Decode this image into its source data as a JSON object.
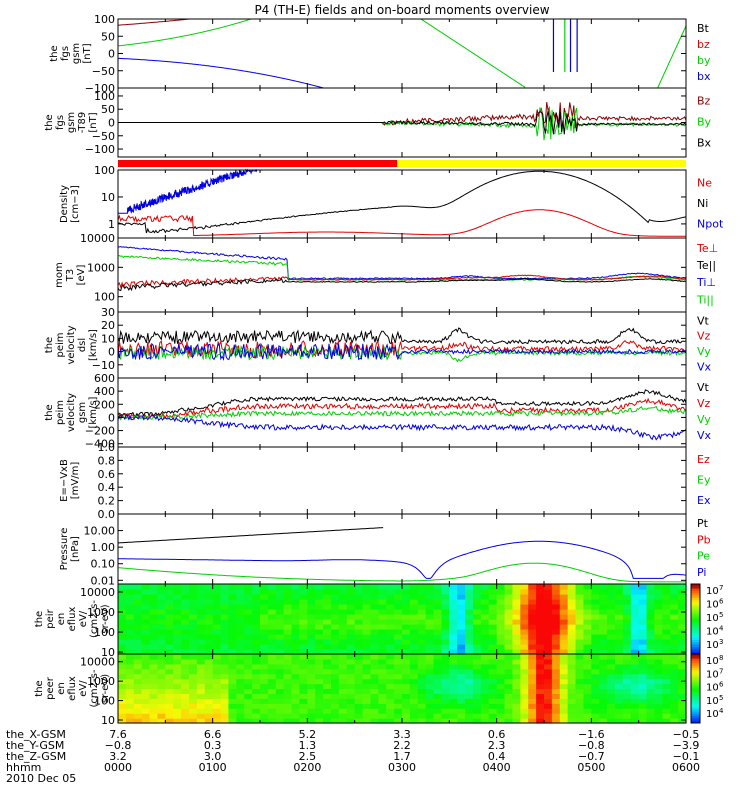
{
  "figure": {
    "title": "P4 (TH-E) fields and on-board moments overview"
  },
  "colors": {
    "black": "#000000",
    "red": "#e00000",
    "green": "#00d000",
    "blue": "#0000e0",
    "dark_red": "#8b0000",
    "bar_red": "#ff0000",
    "bar_yellow": "#ffff00"
  },
  "chart_data": [
    {
      "id": "fgs",
      "type": "line",
      "ylabel": [
        "the",
        "fgs",
        "gsm",
        "[nT]"
      ],
      "ylim": [
        -100,
        100
      ],
      "yscale": "linear",
      "yticks": [
        "100",
        "50",
        "0",
        "−50",
        "−100"
      ],
      "legend": [
        "Bt",
        "bz",
        "by",
        "bx"
      ],
      "legend_colors": [
        "black",
        "red",
        "green",
        "blue"
      ]
    },
    {
      "id": "fgs_ratio",
      "type": "line",
      "ylabel": [
        "the",
        "fgs",
        "gsm",
        "-T89",
        "[nT]"
      ],
      "ylim": [
        -130,
        130
      ],
      "yscale": "linear",
      "yticks": [
        "100",
        "50",
        "0",
        "−50",
        "−100"
      ],
      "legend": [
        "Bz",
        "By",
        "Bx"
      ],
      "legend_colors": [
        "dark_red",
        "green",
        "black"
      ]
    },
    {
      "id": "density",
      "type": "line",
      "ylabel": [
        "Density",
        "[cm−3]"
      ],
      "ylim": [
        0.3,
        100
      ],
      "yscale": "log",
      "yticks": [
        "100",
        "10",
        "1"
      ],
      "legend": [
        "Ne",
        "Ni",
        "Npot"
      ],
      "legend_colors": [
        "red",
        "black",
        "blue"
      ]
    },
    {
      "id": "temperature",
      "type": "line",
      "ylabel": [
        "mom",
        "T3",
        "[eV]"
      ],
      "ylim": [
        30,
        10000
      ],
      "yscale": "log",
      "yticks": [
        "10000",
        "1000",
        "100"
      ],
      "legend": [
        "Te⊥",
        "Te||",
        "Ti⊥",
        "Ti||"
      ],
      "legend_colors": [
        "red",
        "black",
        "blue",
        "green"
      ]
    },
    {
      "id": "ve",
      "type": "line",
      "ylabel": [
        "the",
        "peim",
        "velocity",
        "dsl",
        "[km/s]"
      ],
      "ylim": [
        -20,
        30
      ],
      "yscale": "linear",
      "yticks": [
        "30",
        "20",
        "10",
        "0",
        "−10"
      ],
      "legend": [
        "Vt",
        "Vz",
        "Vy",
        "Vx"
      ],
      "legend_colors": [
        "black",
        "red",
        "green",
        "blue"
      ]
    },
    {
      "id": "vi",
      "type": "line",
      "ylabel": [
        "the",
        "peim",
        "velocity",
        "gsm",
        "[km/s]"
      ],
      "ylim": [
        -450,
        600
      ],
      "yscale": "linear",
      "yticks": [
        "600",
        "400",
        "200",
        "0",
        "−200",
        "−400"
      ],
      "legend": [
        "Vt",
        "Vz",
        "Vy",
        "Vx"
      ],
      "legend_colors": [
        "black",
        "red",
        "green",
        "blue"
      ]
    },
    {
      "id": "efield",
      "type": "line",
      "ylabel": [
        "E=−VxB",
        "[mV/m]"
      ],
      "ylim": [
        0,
        1
      ],
      "yscale": "linear",
      "yticks": [
        "1.0",
        "0.8",
        "0.6",
        "0.4",
        "0.2",
        "0.0"
      ],
      "legend": [
        "Ez",
        "Ey",
        "Ex"
      ],
      "legend_colors": [
        "red",
        "green",
        "blue"
      ]
    },
    {
      "id": "pressure",
      "type": "line",
      "ylabel": [
        "Pressure",
        "[nPa]"
      ],
      "ylim": [
        0.006,
        100
      ],
      "yscale": "log",
      "yticks": [
        "10.00",
        "1.00",
        "0.10",
        "0.01"
      ],
      "legend": [
        "Pt",
        "Pb",
        "Pe",
        "Pi"
      ],
      "legend_colors": [
        "black",
        "red",
        "green",
        "blue"
      ]
    },
    {
      "id": "ion_spec",
      "type": "heatmap",
      "ylabel": [
        "the",
        "peir",
        "en",
        "eflux",
        "eV/",
        "(cm2-s-",
        "sr-eV)"
      ],
      "ylim": [
        8,
        25000
      ],
      "yscale": "log",
      "yticks": [
        "10000",
        "1000",
        "100",
        "10"
      ],
      "colorbar_ticks": [
        "10",
        "10",
        "10",
        "10",
        "10"
      ],
      "colorbar_exps": [
        "7",
        "6",
        "5",
        "4",
        "3"
      ]
    },
    {
      "id": "elec_spec",
      "type": "heatmap",
      "ylabel": [
        "the",
        "peer",
        "en",
        "eflux",
        "eV/",
        "(cm2-s-",
        "sr-eV)"
      ],
      "ylim": [
        7,
        25000
      ],
      "yscale": "log",
      "yticks": [
        "10000",
        "1000",
        "100",
        "10"
      ],
      "colorbar_ticks": [
        "10",
        "10",
        "10",
        "10",
        "10"
      ],
      "colorbar_exps": [
        "8",
        "7",
        "6",
        "5",
        "4"
      ]
    }
  ],
  "time_axis": {
    "tick_hours": [
      0,
      1,
      2,
      3,
      4,
      5,
      6
    ],
    "rows": [
      {
        "label": "the_X-GSM",
        "values": [
          "7.6",
          "6.6",
          "5.2",
          "3.3",
          "0.6",
          "−1.6",
          "−0.5"
        ]
      },
      {
        "label": "the_Y-GSM",
        "values": [
          "−0.8",
          "0.3",
          "1.3",
          "2.2",
          "2.3",
          "−0.8",
          "−3.9"
        ]
      },
      {
        "label": "the_Z-GSM",
        "values": [
          "3.2",
          "3.0",
          "2.5",
          "1.7",
          "0.4",
          "−0.7",
          "−0.1"
        ]
      },
      {
        "label": "hhmm",
        "values": [
          "0000",
          "0100",
          "0200",
          "0300",
          "0400",
          "0500",
          "0600"
        ]
      }
    ],
    "date": "2010 Dec 05"
  }
}
